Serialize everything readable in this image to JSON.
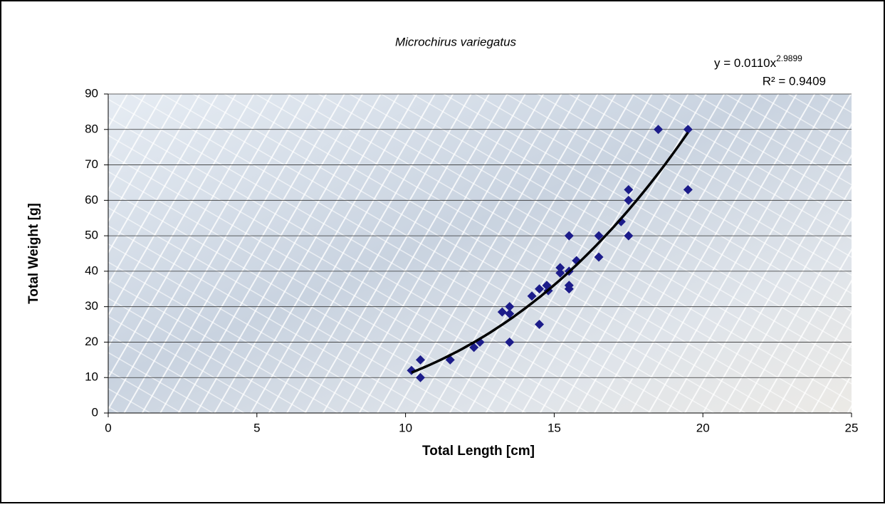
{
  "chart_data": {
    "type": "scatter",
    "title": "Microchirus variegatus",
    "x_label": "Total Length [cm]",
    "y_label": "Total Weight [g]",
    "x": [
      10.2,
      10.5,
      10.5,
      11.5,
      12.3,
      12.5,
      13.25,
      13.5,
      13.5,
      13.5,
      14.25,
      14.5,
      14.5,
      14.75,
      14.8,
      15.2,
      15.2,
      15.5,
      15.5,
      15.5,
      15.5,
      15.75,
      16.5,
      16.5,
      17.25,
      17.5,
      17.5,
      17.5,
      18.5,
      19.5,
      19.5
    ],
    "values": [
      12,
      15,
      10,
      15,
      18.5,
      20,
      28.5,
      30,
      28,
      20,
      33,
      35,
      25,
      36,
      34.5,
      41,
      39.5,
      50,
      40,
      36,
      35,
      43,
      50,
      44,
      54,
      63,
      60,
      50,
      80,
      80,
      63
    ],
    "color": "#1c1c8a",
    "trendline": {
      "equation": "y = 0.0110x",
      "exponent": "2.9899",
      "r2": "R² = 0.9409",
      "coef": 0.011,
      "power": 2.9899,
      "color": "#000000"
    },
    "xlim": [
      0,
      25
    ],
    "xticks": [
      0,
      5,
      10,
      15,
      20,
      25
    ],
    "ylim": [
      0,
      90
    ],
    "yticks": [
      0,
      10,
      20,
      30,
      40,
      50,
      60,
      70,
      80,
      90
    ],
    "grid": true
  }
}
